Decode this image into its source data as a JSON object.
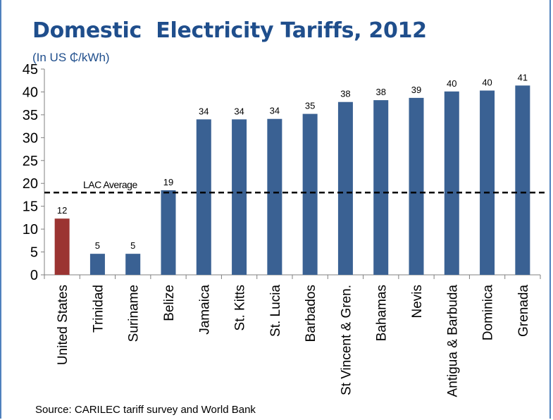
{
  "title": "Domestic  Electricity Tariffs, 2012",
  "subtitle": "(In US ₵/kWh)",
  "source": "Source: CARILEC tariff survey and World Bank",
  "colors": {
    "frame": "#4f81bd",
    "title": "#1f4e8c",
    "highlight_bar": "#9b3432",
    "default_bar": "#3a6193",
    "average_line": "#000000"
  },
  "chart_data": {
    "type": "bar",
    "title": "Domestic  Electricity Tariffs, 2012",
    "subtitle": "(In US ₵/kWh)",
    "xlabel": "",
    "ylabel": "",
    "ylim": [
      0,
      45
    ],
    "yticks": [
      0,
      5,
      10,
      15,
      20,
      25,
      30,
      35,
      40,
      45
    ],
    "grid": false,
    "categories": [
      "United States",
      "Trinidad",
      "Suriname",
      "Belize",
      "Jamaica",
      "St. Kitts",
      "St. Lucia",
      "Barbados",
      "St Vincent & Gren.",
      "Bahamas",
      "Nevis",
      "Antigua & Barbuda",
      "Dominica",
      "Grenada"
    ],
    "values": [
      12.3,
      4.6,
      4.6,
      18.5,
      34.0,
      34.0,
      34.1,
      35.2,
      37.8,
      38.2,
      38.7,
      40.1,
      40.3,
      41.4
    ],
    "data_labels": [
      "12",
      "5",
      "5",
      "19",
      "34",
      "34",
      "34",
      "35",
      "38",
      "38",
      "39",
      "40",
      "40",
      "41"
    ],
    "highlight_index": 0,
    "reference_line": {
      "label": "LAC Average",
      "value": 18
    }
  }
}
